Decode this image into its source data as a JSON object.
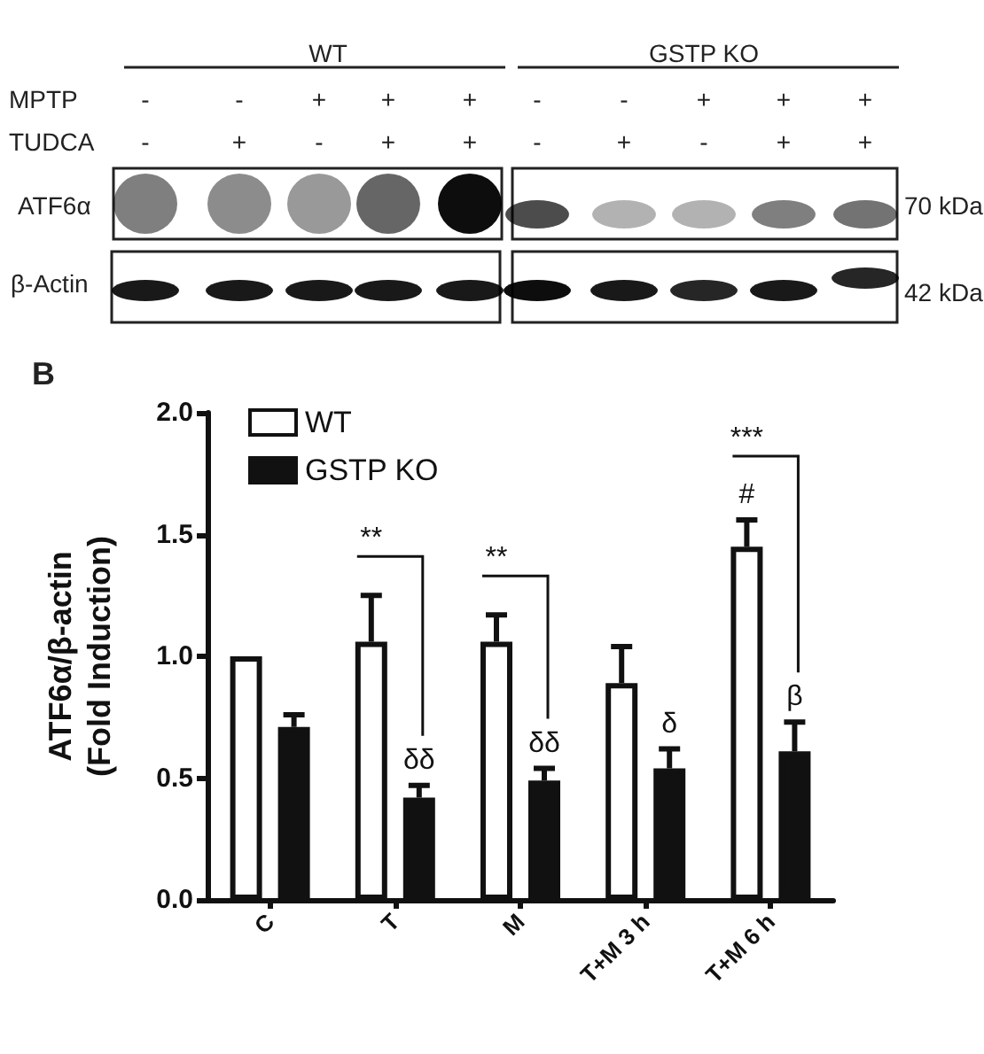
{
  "chart_data": {
    "type": "bar",
    "ylabel": "ATF6α/β-actin\n(Fold Induction)",
    "categories": [
      "C",
      "T",
      "M",
      "T+M 3 h",
      "T+M 6 h"
    ],
    "series": [
      {
        "name": "WT",
        "color": "#ffffff",
        "values": [
          1.0,
          1.06,
          1.06,
          0.89,
          1.45
        ],
        "errors": [
          null,
          [
            1.06,
            1.25
          ],
          [
            1.06,
            1.17
          ],
          [
            0.89,
            1.04
          ],
          [
            1.45,
            1.56
          ]
        ]
      },
      {
        "name": "GSTP KO",
        "color": "#111111",
        "values": [
          0.71,
          0.42,
          0.49,
          0.54,
          0.61
        ],
        "errors": [
          [
            0.71,
            0.76
          ],
          [
            0.42,
            0.47
          ],
          [
            0.49,
            0.54
          ],
          [
            0.54,
            0.62
          ],
          [
            0.61,
            0.73
          ]
        ]
      }
    ],
    "ylim": [
      0,
      2.0
    ],
    "yticks": [
      {
        "value": 0,
        "label": "0.0"
      },
      {
        "value": 0.5,
        "label": "0.5"
      },
      {
        "value": 1,
        "label": "1.0"
      },
      {
        "value": 1.5,
        "label": "1.5"
      },
      {
        "value": 2,
        "label": "2.0"
      }
    ],
    "legend": "top left",
    "grid": false,
    "annotations": [
      "WT",
      "GSTP KO",
      "MPTP",
      "TUDCA",
      "-",
      "-",
      "+",
      "+",
      "+",
      "-",
      "-",
      "+",
      "+",
      "+",
      "-",
      "+",
      "-",
      "+",
      "+",
      "-",
      "+",
      "-",
      "+",
      "+",
      "ATF6α",
      "β-Actin",
      "70 kDa",
      "42 kDa",
      "B",
      "**",
      "**",
      "***",
      "#",
      "δδ",
      "δδ",
      "δ",
      "β"
    ]
  }
}
